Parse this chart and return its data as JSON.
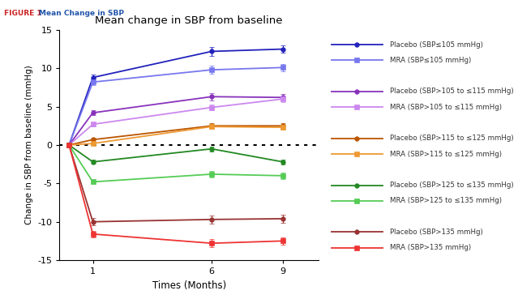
{
  "title": "Mean change in SBP from baseline",
  "xlabel": "Times (Months)",
  "ylabel": "Change in SBP from baseline (mmHg)",
  "x": [
    0,
    1,
    6,
    9
  ],
  "ylim": [
    -15,
    15
  ],
  "yticks": [
    -15,
    -10,
    -5,
    0,
    5,
    10,
    15
  ],
  "series": [
    {
      "label": "Placebo (SBP≤105 mmHg)",
      "color": "#2222bb",
      "marker": "o",
      "values": [
        0,
        8.8,
        12.2,
        12.5
      ],
      "yerr": [
        0,
        0.4,
        0.55,
        0.5
      ]
    },
    {
      "label": "MRA (SBP≤105 mmHg)",
      "color": "#7777ee",
      "marker": "s",
      "values": [
        0,
        8.2,
        9.8,
        10.1
      ],
      "yerr": [
        0,
        0.4,
        0.5,
        0.45
      ]
    },
    {
      "label": "Placebo (SBP>105 to ≤115 mmHg)",
      "color": "#8833bb",
      "marker": "o",
      "values": [
        0,
        4.2,
        6.3,
        6.2
      ],
      "yerr": [
        0,
        0.3,
        0.45,
        0.4
      ]
    },
    {
      "label": "MRA (SBP>105 to ≤115 mmHg)",
      "color": "#cc88ee",
      "marker": "s",
      "values": [
        0,
        2.7,
        4.9,
        6.0
      ],
      "yerr": [
        0,
        0.3,
        0.4,
        0.4
      ]
    },
    {
      "label": "Placebo (SBP>115 to ≤125 mmHg)",
      "color": "#bb5500",
      "marker": "o",
      "values": [
        0,
        0.7,
        2.5,
        2.5
      ],
      "yerr": [
        0,
        0.2,
        0.3,
        0.3
      ]
    },
    {
      "label": "MRA (SBP>115 to ≤125 mmHg)",
      "color": "#ee9933",
      "marker": "s",
      "values": [
        0,
        0.2,
        2.4,
        2.3
      ],
      "yerr": [
        0,
        0.2,
        0.3,
        0.3
      ]
    },
    {
      "label": "Placebo (SBP>125 to ≤135 mmHg)",
      "color": "#228822",
      "marker": "o",
      "values": [
        0,
        -2.2,
        -0.5,
        -2.2
      ],
      "yerr": [
        0,
        0.25,
        0.3,
        0.3
      ]
    },
    {
      "label": "MRA (SBP>125 to ≤135 mmHg)",
      "color": "#55cc55",
      "marker": "s",
      "values": [
        0,
        -4.8,
        -3.8,
        -4.0
      ],
      "yerr": [
        0,
        0.3,
        0.4,
        0.4
      ]
    },
    {
      "label": "Placebo (SBP>135 mmHg)",
      "color": "#993333",
      "marker": "o",
      "values": [
        0,
        -10.0,
        -9.7,
        -9.6
      ],
      "yerr": [
        0,
        0.45,
        0.5,
        0.5
      ]
    },
    {
      "label": "MRA (SBP>135 mmHg)",
      "color": "#ee3333",
      "marker": "s",
      "values": [
        0,
        -11.6,
        -12.8,
        -12.5
      ],
      "yerr": [
        0,
        0.45,
        0.5,
        0.5
      ]
    }
  ],
  "header_bg": "#ccdde8",
  "header_fig_color": "#cc2222",
  "header_title_color": "#2255aa",
  "fig_border_color": "#aabbcc"
}
